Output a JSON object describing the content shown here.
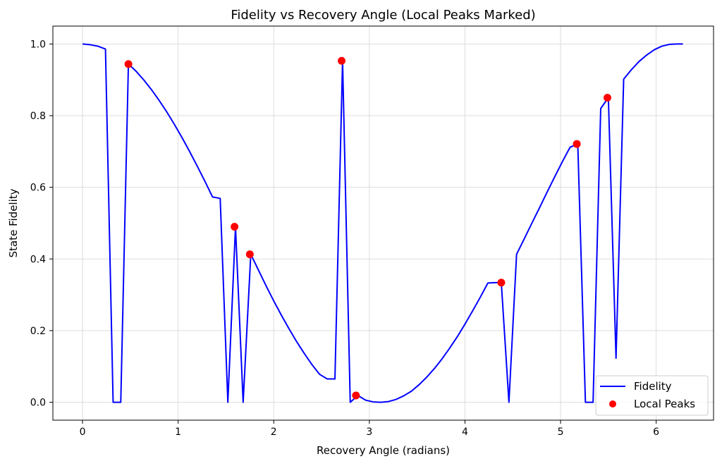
{
  "chart_data": {
    "type": "line",
    "title": "Fidelity vs Recovery Angle (Local Peaks Marked)",
    "xlabel": "Recovery Angle (radians)",
    "ylabel": "State Fidelity",
    "xlim": [
      -0.31,
      6.6
    ],
    "ylim": [
      -0.05,
      1.05
    ],
    "xticks": [
      0,
      1,
      2,
      3,
      4,
      5,
      6
    ],
    "xtick_labels": [
      "0",
      "1",
      "2",
      "3",
      "4",
      "5",
      "6"
    ],
    "yticks": [
      0.0,
      0.2,
      0.4,
      0.6,
      0.8,
      1.0
    ],
    "ytick_labels": [
      "0.0",
      "0.2",
      "0.4",
      "0.6",
      "0.8",
      "1.0"
    ],
    "grid": true,
    "legend_position": "lower-right",
    "series": [
      {
        "name": "Fidelity",
        "color": "#0000ff",
        "marker": "line",
        "x": [
          0,
          0.08,
          0.16,
          0.24,
          0.32,
          0.4,
          0.48,
          0.56,
          0.64,
          0.72,
          0.8,
          0.88,
          0.96,
          1.04,
          1.12,
          1.2,
          1.28,
          1.36,
          1.44,
          1.52,
          1.6,
          1.68,
          1.76,
          1.84,
          1.92,
          2.0,
          2.08,
          2.16,
          2.24,
          2.32,
          2.4,
          2.48,
          2.56,
          2.64,
          2.72,
          2.8,
          2.88,
          2.96,
          3.04,
          3.12,
          3.2,
          3.28,
          3.36,
          3.44,
          3.52,
          3.6,
          3.68,
          3.76,
          3.84,
          3.92,
          4.0,
          4.08,
          4.16,
          4.24,
          4.32,
          4.38,
          4.46,
          4.54,
          4.62,
          4.7,
          4.78,
          4.86,
          4.94,
          5.02,
          5.1,
          5.18,
          5.26,
          5.34,
          5.42,
          5.5,
          5.58,
          5.66,
          5.74,
          5.82,
          5.9,
          5.98,
          6.06,
          6.14,
          6.22,
          6.28
        ],
        "y": [
          1.0,
          0.998,
          0.994,
          0.986,
          0.0,
          0.0,
          0.944,
          0.924,
          0.9,
          0.873,
          0.843,
          0.811,
          0.776,
          0.739,
          0.7,
          0.659,
          0.617,
          0.573,
          0.569,
          0.0,
          0.49,
          0.0,
          0.413,
          0.369,
          0.325,
          0.283,
          0.243,
          0.205,
          0.169,
          0.136,
          0.105,
          0.078,
          0.065,
          0.065,
          0.953,
          0.0,
          0.019,
          0.006,
          0.001,
          0.0,
          0.002,
          0.008,
          0.018,
          0.031,
          0.049,
          0.07,
          0.094,
          0.121,
          0.151,
          0.183,
          0.218,
          0.255,
          0.293,
          0.333,
          0.334,
          0.334,
          0.0,
          0.413,
          0.456,
          0.5,
          0.543,
          0.587,
          0.63,
          0.672,
          0.712,
          0.721,
          0.0,
          0.0,
          0.82,
          0.85,
          0.123,
          0.902,
          0.928,
          0.951,
          0.969,
          0.984,
          0.994,
          0.999,
          1.0,
          1.0
        ]
      },
      {
        "name": "Local Peaks",
        "color": "#ff0000",
        "marker": "dot",
        "x": [
          0.48,
          1.59,
          1.75,
          2.71,
          2.86,
          4.38,
          5.17,
          5.49
        ],
        "y": [
          0.944,
          0.49,
          0.413,
          0.953,
          0.019,
          0.334,
          0.721,
          0.85
        ]
      }
    ]
  }
}
